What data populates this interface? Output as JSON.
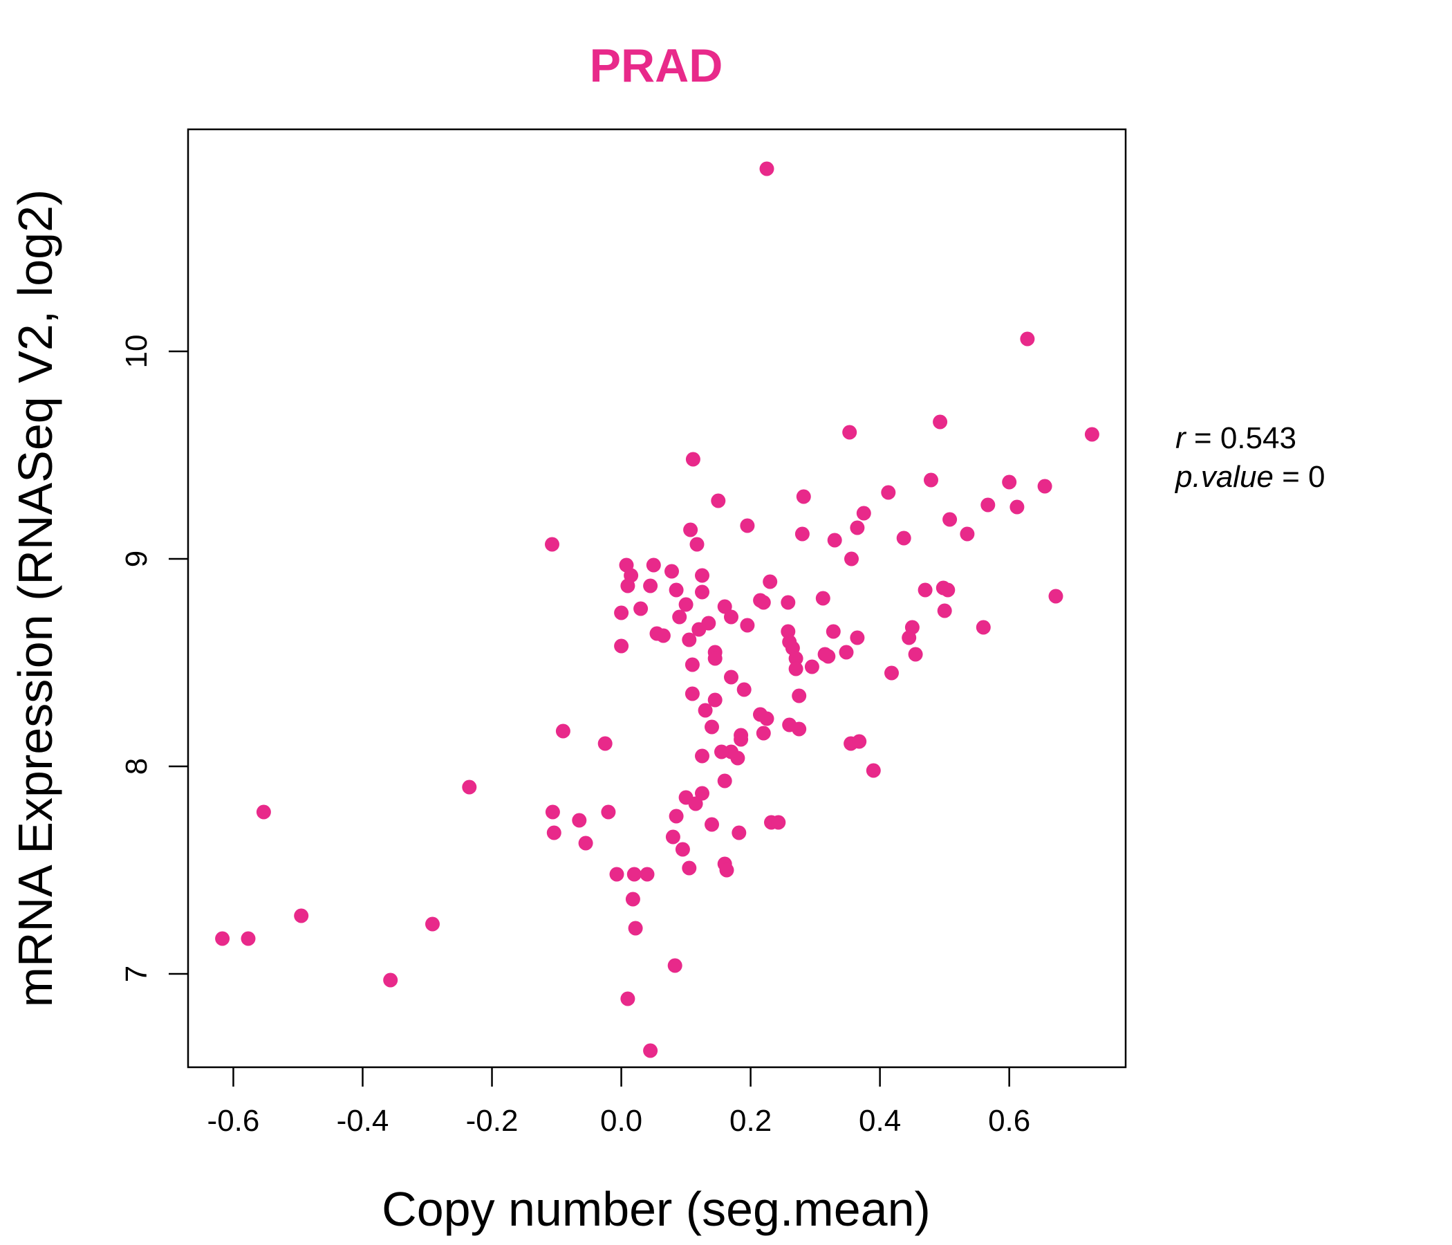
{
  "colors": {
    "accent": "#e8298a",
    "axis": "#000000"
  },
  "chart_data": {
    "type": "scatter",
    "title": "PRAD",
    "xlabel": "Copy number (seg.mean)",
    "ylabel": "mRNA Expression (RNASeq V2, log2)",
    "xlim": [
      -0.67,
      0.78
    ],
    "ylim": [
      6.55,
      11.07
    ],
    "xticks": [
      -0.6,
      -0.4,
      -0.2,
      0.0,
      0.2,
      0.4,
      0.6
    ],
    "xtick_labels": [
      "-0.6",
      "-0.4",
      "-0.2",
      "0.0",
      "0.2",
      "0.4",
      "0.6"
    ],
    "yticks": [
      7,
      8,
      9,
      10
    ],
    "ytick_labels": [
      "7",
      "8",
      "9",
      "10"
    ],
    "grid": false,
    "stats": {
      "r_label": "r",
      "r_value": "0.543",
      "p_label": "p.value",
      "p_value": "0"
    },
    "points": [
      [
        0.225,
        10.88
      ],
      [
        0.628,
        10.06
      ],
      [
        0.728,
        9.6
      ],
      [
        0.493,
        9.66
      ],
      [
        0.353,
        9.61
      ],
      [
        0.111,
        9.48
      ],
      [
        0.479,
        9.38
      ],
      [
        0.6,
        9.37
      ],
      [
        0.655,
        9.35
      ],
      [
        0.413,
        9.32
      ],
      [
        0.15,
        9.28
      ],
      [
        0.282,
        9.3
      ],
      [
        0.567,
        9.26
      ],
      [
        0.612,
        9.25
      ],
      [
        0.375,
        9.22
      ],
      [
        0.508,
        9.19
      ],
      [
        0.195,
        9.16
      ],
      [
        0.107,
        9.14
      ],
      [
        0.365,
        9.15
      ],
      [
        0.535,
        9.12
      ],
      [
        0.28,
        9.12
      ],
      [
        0.437,
        9.1
      ],
      [
        0.33,
        9.09
      ],
      [
        0.117,
        9.07
      ],
      [
        -0.107,
        9.07
      ],
      [
        0.356,
        9.0
      ],
      [
        0.008,
        8.97
      ],
      [
        0.05,
        8.97
      ],
      [
        0.015,
        8.92
      ],
      [
        0.078,
        8.94
      ],
      [
        0.125,
        8.92
      ],
      [
        0.23,
        8.89
      ],
      [
        0.045,
        8.87
      ],
      [
        0.01,
        8.87
      ],
      [
        0.498,
        8.86
      ],
      [
        0.47,
        8.85
      ],
      [
        0.505,
        8.85
      ],
      [
        0.085,
        8.85
      ],
      [
        0.125,
        8.84
      ],
      [
        0.312,
        8.81
      ],
      [
        0.672,
        8.82
      ],
      [
        0.215,
        8.8
      ],
      [
        0.22,
        8.79
      ],
      [
        0.258,
        8.79
      ],
      [
        0.1,
        8.78
      ],
      [
        0.16,
        8.77
      ],
      [
        0.5,
        8.75
      ],
      [
        0.0,
        8.74
      ],
      [
        0.03,
        8.76
      ],
      [
        0.09,
        8.72
      ],
      [
        0.17,
        8.72
      ],
      [
        0.135,
        8.69
      ],
      [
        0.195,
        8.68
      ],
      [
        0.56,
        8.67
      ],
      [
        0.45,
        8.67
      ],
      [
        0.12,
        8.66
      ],
      [
        0.328,
        8.65
      ],
      [
        0.258,
        8.65
      ],
      [
        0.055,
        8.64
      ],
      [
        0.065,
        8.63
      ],
      [
        0.445,
        8.62
      ],
      [
        0.365,
        8.62
      ],
      [
        0.26,
        8.6
      ],
      [
        0.105,
        8.61
      ],
      [
        0.265,
        8.57
      ],
      [
        0.315,
        8.54
      ],
      [
        0.145,
        8.55
      ],
      [
        0.348,
        8.55
      ],
      [
        0.0,
        8.58
      ],
      [
        0.455,
        8.54
      ],
      [
        0.27,
        8.52
      ],
      [
        0.32,
        8.53
      ],
      [
        0.145,
        8.52
      ],
      [
        0.295,
        8.48
      ],
      [
        0.27,
        8.47
      ],
      [
        0.418,
        8.45
      ],
      [
        0.11,
        8.49
      ],
      [
        0.17,
        8.43
      ],
      [
        0.19,
        8.37
      ],
      [
        0.275,
        8.34
      ],
      [
        0.145,
        8.32
      ],
      [
        0.11,
        8.35
      ],
      [
        0.13,
        8.27
      ],
      [
        0.215,
        8.25
      ],
      [
        0.215,
        8.25
      ],
      [
        0.225,
        8.23
      ],
      [
        0.26,
        8.2
      ],
      [
        0.22,
        8.16
      ],
      [
        0.275,
        8.18
      ],
      [
        0.14,
        8.19
      ],
      [
        -0.09,
        8.17
      ],
      [
        -0.025,
        8.11
      ],
      [
        0.185,
        8.15
      ],
      [
        0.185,
        8.13
      ],
      [
        0.355,
        8.11
      ],
      [
        0.368,
        8.12
      ],
      [
        0.17,
        8.07
      ],
      [
        0.155,
        8.07
      ],
      [
        0.18,
        8.04
      ],
      [
        0.125,
        8.05
      ],
      [
        0.39,
        7.98
      ],
      [
        0.16,
        7.93
      ],
      [
        -0.235,
        7.9
      ],
      [
        0.125,
        7.87
      ],
      [
        0.1,
        7.85
      ],
      [
        0.115,
        7.82
      ],
      [
        -0.02,
        7.78
      ],
      [
        -0.106,
        7.78
      ],
      [
        -0.553,
        7.78
      ],
      [
        -0.065,
        7.74
      ],
      [
        0.232,
        7.73
      ],
      [
        0.243,
        7.73
      ],
      [
        0.085,
        7.76
      ],
      [
        0.14,
        7.72
      ],
      [
        0.182,
        7.68
      ],
      [
        -0.104,
        7.68
      ],
      [
        -0.055,
        7.63
      ],
      [
        0.08,
        7.66
      ],
      [
        0.095,
        7.6
      ],
      [
        0.16,
        7.53
      ],
      [
        0.163,
        7.5
      ],
      [
        0.105,
        7.51
      ],
      [
        -0.007,
        7.48
      ],
      [
        0.04,
        7.48
      ],
      [
        0.02,
        7.48
      ],
      [
        0.018,
        7.36
      ],
      [
        -0.495,
        7.28
      ],
      [
        -0.292,
        7.24
      ],
      [
        0.022,
        7.22
      ],
      [
        -0.617,
        7.17
      ],
      [
        -0.577,
        7.17
      ],
      [
        0.083,
        7.04
      ],
      [
        -0.357,
        6.97
      ],
      [
        0.01,
        6.88
      ],
      [
        0.045,
        6.63
      ]
    ]
  }
}
